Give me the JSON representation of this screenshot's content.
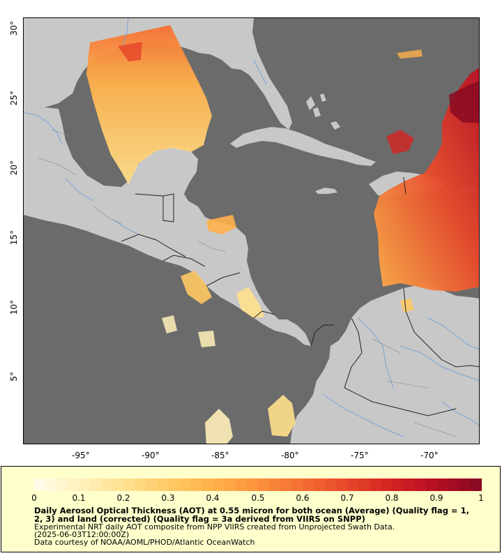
{
  "map": {
    "lon_ticks": [
      "-95°",
      "-90°",
      "-85°",
      "-80°",
      "-75°",
      "-70°"
    ],
    "lat_ticks": [
      "30°",
      "25°",
      "20°",
      "15°",
      "10°",
      "5°"
    ],
    "colors": {
      "ocean": "#6b6b6b",
      "land": "#c8c8c8",
      "rivers": "#6f9fd8",
      "borders": "#222222",
      "no_data": "#ffffff"
    }
  },
  "legend": {
    "colorbar_ticks": [
      "0",
      "0.1",
      "0.2",
      "0.3",
      "0.4",
      "0.5",
      "0.6",
      "0.7",
      "0.8",
      "0.9",
      "1"
    ],
    "colormap": [
      "#fffbe6",
      "#fff0b8",
      "#ffe08c",
      "#ffc964",
      "#ffb04a",
      "#fb913c",
      "#f56e33",
      "#e8492a",
      "#d42422",
      "#b90f23",
      "#8a0a22"
    ],
    "title": "Daily Aerosol Optical Thickness (AOT) at 0.55 micron for both ocean (Average) (Quality flag = 1, 2, 3) and land (corrected) (Quality flag = 3a derived from VIIRS on SNPP)",
    "line1": "Experimental NRT daily AOT composite from NPP VIIRS created from Unprojected Swath Data.",
    "line2": "(2025-06-03T12:00:00Z)",
    "line3": "Data courtesy of NOAA/AOML/PHOD/Atlantic OceanWatch"
  }
}
